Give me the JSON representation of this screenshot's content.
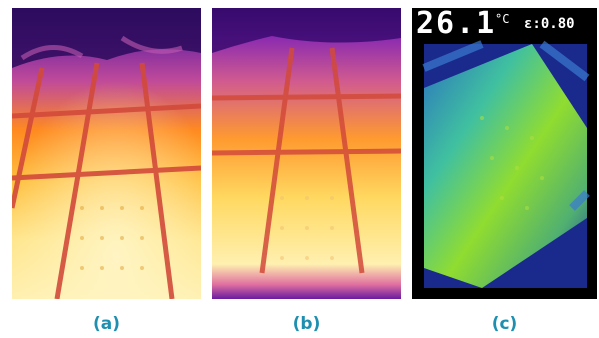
{
  "captions": {
    "a": "(a)",
    "b": "(b)",
    "c": "(c)"
  },
  "camera_readout": {
    "temperature": "26.1",
    "unit": "°C",
    "emissivity": "ε:0.80"
  },
  "colors": {
    "caption": "#1f8fb0",
    "ironbow_hot": "#ffe98a",
    "ironbow_mid": "#ff9a1a",
    "ironbow_cool": "#8a2aa8",
    "rainbow_hot": "#9be02a",
    "rainbow_cool": "#1a2a8c"
  }
}
